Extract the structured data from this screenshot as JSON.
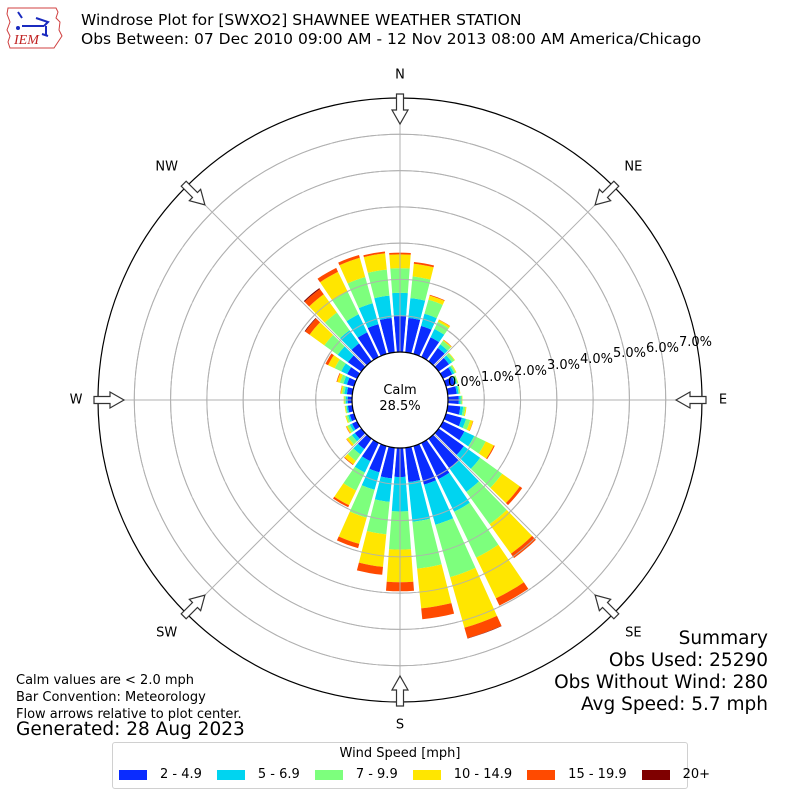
{
  "header": {
    "logo_text": "IEM",
    "title_line1": "Windrose Plot for [SWXO2] SHAWNEE WEATHER STATION",
    "title_line2": "Obs Between: 07 Dec 2010 09:00 AM - 12 Nov 2013 08:00 AM America/Chicago"
  },
  "calm": {
    "label": "Calm",
    "value": "28.5%"
  },
  "notes": {
    "line1": "Calm values are < 2.0 mph",
    "line2": "Bar Convention: Meteorology",
    "line3": "Flow arrows relative to plot center.",
    "generated": "Generated: 28 Aug 2023"
  },
  "summary": {
    "title": "Summary",
    "obs_used": "Obs Used: 25290",
    "obs_without_wind": "Obs Without Wind: 280",
    "avg_speed": "Avg Speed: 5.7 mph"
  },
  "legend": {
    "title": "Wind Speed [mph]",
    "items": [
      {
        "label": "2 - 4.9",
        "color": "#0a2cff"
      },
      {
        "label": "5 - 6.9",
        "color": "#00d4f0"
      },
      {
        "label": "7 - 9.9",
        "color": "#7dff7d"
      },
      {
        "label": "10 - 14.9",
        "color": "#ffe600"
      },
      {
        "label": "15 - 19.9",
        "color": "#ff4a00"
      },
      {
        "label": "20+",
        "color": "#7f0000"
      }
    ]
  },
  "compass": [
    {
      "label": "N",
      "angle": 0
    },
    {
      "label": "NE",
      "angle": 45
    },
    {
      "label": "E",
      "angle": 90
    },
    {
      "label": "SE",
      "angle": 135
    },
    {
      "label": "S",
      "angle": 180
    },
    {
      "label": "SW",
      "angle": 225
    },
    {
      "label": "W",
      "angle": 270
    },
    {
      "label": "NW",
      "angle": 315
    }
  ],
  "chart_data": {
    "type": "windrose",
    "title": "Windrose Plot for [SWXO2] SHAWNEE WEATHER STATION",
    "subtitle": "Obs Between: 07 Dec 2010 09:00 AM - 12 Nov 2013 08:00 AM America/Chicago",
    "radial_ticks": [
      "0.0%",
      "1.0%",
      "2.0%",
      "3.0%",
      "4.0%",
      "5.0%",
      "6.0%",
      "7.0%"
    ],
    "rmax_percent": 7.0,
    "calm_percent": 28.5,
    "speed_bins": [
      "2 - 4.9",
      "5 - 6.9",
      "7 - 9.9",
      "10 - 14.9",
      "15 - 19.9",
      "20+"
    ],
    "bin_colors": [
      "#0a2cff",
      "#00d4f0",
      "#7dff7d",
      "#ffe600",
      "#ff4a00",
      "#7f0000"
    ],
    "directions_deg": [
      0,
      10,
      20,
      30,
      40,
      50,
      60,
      70,
      80,
      90,
      100,
      110,
      120,
      130,
      140,
      150,
      160,
      170,
      180,
      190,
      200,
      210,
      220,
      230,
      240,
      250,
      260,
      270,
      280,
      290,
      300,
      310,
      320,
      330,
      340,
      350
    ],
    "series": [
      {
        "name": "2 - 4.9",
        "values": [
          1.0,
          0.95,
          0.8,
          0.6,
          0.45,
          0.35,
          0.28,
          0.25,
          0.25,
          0.3,
          0.35,
          0.45,
          0.65,
          0.85,
          1.0,
          1.1,
          1.1,
          0.95,
          0.8,
          0.85,
          0.75,
          0.55,
          0.35,
          0.22,
          0.15,
          0.12,
          0.12,
          0.12,
          0.15,
          0.2,
          0.3,
          0.45,
          0.6,
          0.75,
          0.85,
          0.95
        ]
      },
      {
        "name": "5 - 6.9",
        "values": [
          0.63,
          0.55,
          0.35,
          0.25,
          0.12,
          0.1,
          0.06,
          0.05,
          0.05,
          0.05,
          0.08,
          0.12,
          0.3,
          0.55,
          0.8,
          1.0,
          1.15,
          1.1,
          0.95,
          0.65,
          0.5,
          0.35,
          0.18,
          0.1,
          0.07,
          0.05,
          0.04,
          0.05,
          0.07,
          0.1,
          0.18,
          0.35,
          0.45,
          0.55,
          0.6,
          0.62
        ]
      },
      {
        "name": "7 - 9.9",
        "values": [
          0.68,
          0.6,
          0.4,
          0.22,
          0.12,
          0.08,
          0.05,
          0.04,
          0.04,
          0.04,
          0.06,
          0.12,
          0.35,
          0.75,
          1.1,
          1.4,
          1.5,
          1.3,
          1.05,
          0.9,
          0.8,
          0.55,
          0.22,
          0.12,
          0.07,
          0.05,
          0.03,
          0.04,
          0.06,
          0.1,
          0.2,
          0.45,
          0.6,
          0.7,
          0.75,
          0.72
        ]
      },
      {
        "name": "10 - 14.9",
        "values": [
          0.38,
          0.35,
          0.12,
          0.06,
          0.03,
          0.02,
          0.02,
          0.01,
          0.01,
          0.01,
          0.03,
          0.08,
          0.25,
          0.6,
          1.0,
          1.25,
          1.45,
          1.1,
          0.9,
          0.9,
          0.75,
          0.45,
          0.12,
          0.06,
          0.04,
          0.03,
          0.02,
          0.02,
          0.04,
          0.08,
          0.2,
          0.5,
          0.62,
          0.6,
          0.55,
          0.45
        ]
      },
      {
        "name": "15 - 19.9",
        "values": [
          0.05,
          0.05,
          0.02,
          0.01,
          0.01,
          0.0,
          0.0,
          0.0,
          0.0,
          0.0,
          0.0,
          0.01,
          0.03,
          0.08,
          0.15,
          0.22,
          0.3,
          0.3,
          0.25,
          0.22,
          0.12,
          0.06,
          0.02,
          0.01,
          0.01,
          0.0,
          0.0,
          0.0,
          0.01,
          0.02,
          0.08,
          0.15,
          0.18,
          0.12,
          0.08,
          0.05
        ]
      },
      {
        "name": "20+",
        "values": [
          0.0,
          0.0,
          0.0,
          0.0,
          0.0,
          0.0,
          0.0,
          0.0,
          0.0,
          0.0,
          0.0,
          0.0,
          0.0,
          0.0,
          0.0,
          0.0,
          0.01,
          0.0,
          0.0,
          0.0,
          0.0,
          0.0,
          0.0,
          0.0,
          0.0,
          0.0,
          0.0,
          0.0,
          0.0,
          0.0,
          0.0,
          0.02,
          0.03,
          0.0,
          0.0,
          0.0
        ]
      }
    ],
    "bar_convention": "Meteorology",
    "legend_position": "bottom-center",
    "grid": true
  }
}
